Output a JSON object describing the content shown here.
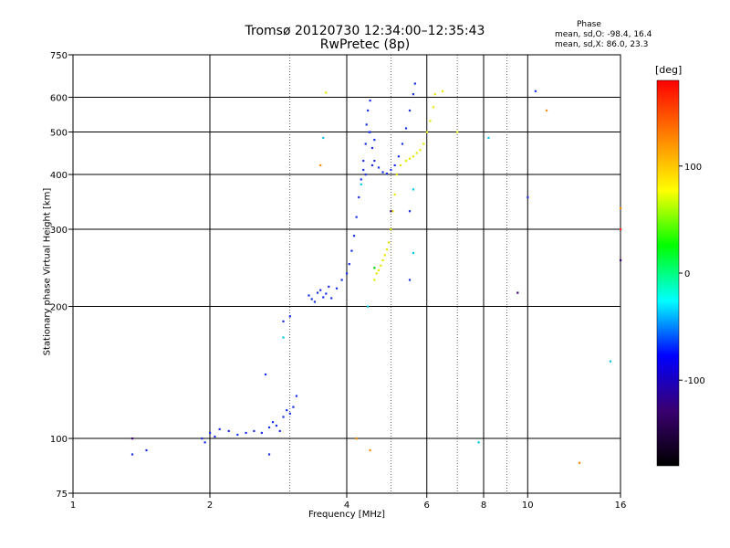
{
  "chart_data": {
    "type": "scatter",
    "title": "Tromsø 20120730 12:34:00–12:35:43",
    "subtitle": "RwPretec (8p)",
    "phase_panel": {
      "title": "Phase",
      "line_o": "mean, sd,O: -98.4, 16.4",
      "line_x": "mean, sd,X:  86.0, 23.3"
    },
    "xlabel": "Frequency [MHz]",
    "ylabel": "Stationary phase Virtual Height [km]",
    "x_scale": "log",
    "y_scale": "log",
    "xlim": [
      1,
      16
    ],
    "ylim": [
      75,
      750
    ],
    "x_ticks": [
      1,
      2,
      4,
      6,
      8,
      10,
      16
    ],
    "y_ticks": [
      75,
      100,
      200,
      300,
      400,
      500,
      600,
      750
    ],
    "x_major_grid": [
      2,
      4,
      6,
      8,
      10
    ],
    "x_minor_grid": [
      3,
      5,
      7,
      9
    ],
    "y_major_grid": [
      100,
      200,
      300,
      400,
      500,
      600
    ],
    "colorbar": {
      "unit": "[deg]",
      "ticks": [
        100,
        0,
        -100
      ],
      "range": [
        -180,
        180
      ],
      "colors": [
        "#000000",
        "#3a0070",
        "#0000ff",
        "#00ffff",
        "#00ff00",
        "#ffff00",
        "#ff8000",
        "#ff0000"
      ]
    },
    "series": [
      {
        "color": "#1a2fe8",
        "points": [
          [
            1.35,
            92
          ],
          [
            1.45,
            94
          ],
          [
            1.92,
            100
          ],
          [
            1.95,
            98
          ],
          [
            2.0,
            103
          ],
          [
            2.05,
            101
          ],
          [
            2.1,
            105
          ],
          [
            2.2,
            104
          ],
          [
            2.3,
            102
          ],
          [
            2.4,
            103
          ],
          [
            2.5,
            104
          ],
          [
            2.6,
            103
          ],
          [
            2.7,
            106
          ],
          [
            2.8,
            107
          ],
          [
            2.75,
            109
          ],
          [
            2.85,
            104
          ],
          [
            2.9,
            112
          ],
          [
            3.0,
            114
          ],
          [
            3.05,
            118
          ],
          [
            3.1,
            125
          ],
          [
            2.95,
            116
          ],
          [
            2.7,
            92
          ],
          [
            2.65,
            140
          ],
          [
            2.9,
            185
          ],
          [
            3.0,
            190
          ],
          [
            3.3,
            212
          ],
          [
            3.35,
            208
          ],
          [
            3.4,
            205
          ],
          [
            3.45,
            215
          ],
          [
            3.5,
            218
          ],
          [
            3.55,
            210
          ],
          [
            3.6,
            214
          ],
          [
            3.65,
            222
          ],
          [
            3.7,
            209
          ],
          [
            3.8,
            220
          ],
          [
            3.9,
            230
          ],
          [
            4.0,
            238
          ],
          [
            4.05,
            250
          ],
          [
            4.1,
            268
          ],
          [
            4.15,
            290
          ],
          [
            4.2,
            320
          ],
          [
            4.25,
            355
          ],
          [
            4.3,
            390
          ],
          [
            4.35,
            430
          ],
          [
            4.4,
            470
          ],
          [
            4.42,
            520
          ],
          [
            4.45,
            560
          ],
          [
            4.5,
            590
          ],
          [
            4.48,
            500
          ],
          [
            4.55,
            460
          ],
          [
            4.6,
            430
          ],
          [
            4.7,
            415
          ],
          [
            4.8,
            405
          ],
          [
            4.9,
            402
          ],
          [
            5.0,
            410
          ],
          [
            5.1,
            420
          ],
          [
            5.2,
            440
          ],
          [
            5.3,
            470
          ],
          [
            5.4,
            510
          ],
          [
            5.5,
            560
          ],
          [
            5.6,
            610
          ],
          [
            5.65,
            645
          ],
          [
            4.5,
            500
          ],
          [
            4.6,
            480
          ],
          [
            4.55,
            420
          ],
          [
            4.4,
            400
          ],
          [
            4.35,
            410
          ],
          [
            5.5,
            330
          ],
          [
            5.5,
            230
          ],
          [
            10,
            355
          ],
          [
            10.4,
            620
          ]
        ]
      },
      {
        "color": "#e6e600",
        "points": [
          [
            4.6,
            230
          ],
          [
            4.65,
            238
          ],
          [
            4.7,
            242
          ],
          [
            4.75,
            248
          ],
          [
            4.8,
            255
          ],
          [
            4.85,
            262
          ],
          [
            4.9,
            270
          ],
          [
            4.95,
            280
          ],
          [
            5.0,
            300
          ],
          [
            5.05,
            330
          ],
          [
            5.1,
            360
          ],
          [
            5.15,
            400
          ],
          [
            5.25,
            420
          ],
          [
            5.4,
            430
          ],
          [
            5.5,
            435
          ],
          [
            5.6,
            440
          ],
          [
            5.7,
            448
          ],
          [
            5.8,
            455
          ],
          [
            5.9,
            470
          ],
          [
            6.0,
            500
          ],
          [
            6.1,
            530
          ],
          [
            6.2,
            570
          ],
          [
            6.25,
            610
          ],
          [
            6.5,
            620
          ],
          [
            7.0,
            500
          ],
          [
            3.6,
            615
          ]
        ]
      },
      {
        "color": "#00c8e6",
        "points": [
          [
            2.9,
            170
          ],
          [
            3.55,
            485
          ],
          [
            4.3,
            380
          ],
          [
            4.45,
            200
          ],
          [
            5.6,
            265
          ],
          [
            5.6,
            370
          ],
          [
            8.2,
            485
          ],
          [
            7.8,
            98
          ],
          [
            15.2,
            150
          ]
        ]
      },
      {
        "color": "#ff8c00",
        "points": [
          [
            3.5,
            420
          ],
          [
            4.5,
            94
          ],
          [
            4.2,
            100
          ],
          [
            11.0,
            560
          ],
          [
            13.0,
            88
          ],
          [
            16.0,
            335
          ]
        ]
      },
      {
        "color": "#ff2020",
        "points": [
          [
            16.0,
            300
          ]
        ]
      },
      {
        "color": "#00d200",
        "points": [
          [
            4.6,
            245
          ]
        ]
      },
      {
        "color": "#3a0070",
        "points": [
          [
            1.35,
            100
          ],
          [
            9.5,
            215
          ],
          [
            16.0,
            255
          ],
          [
            5.0,
            330
          ]
        ]
      }
    ]
  }
}
